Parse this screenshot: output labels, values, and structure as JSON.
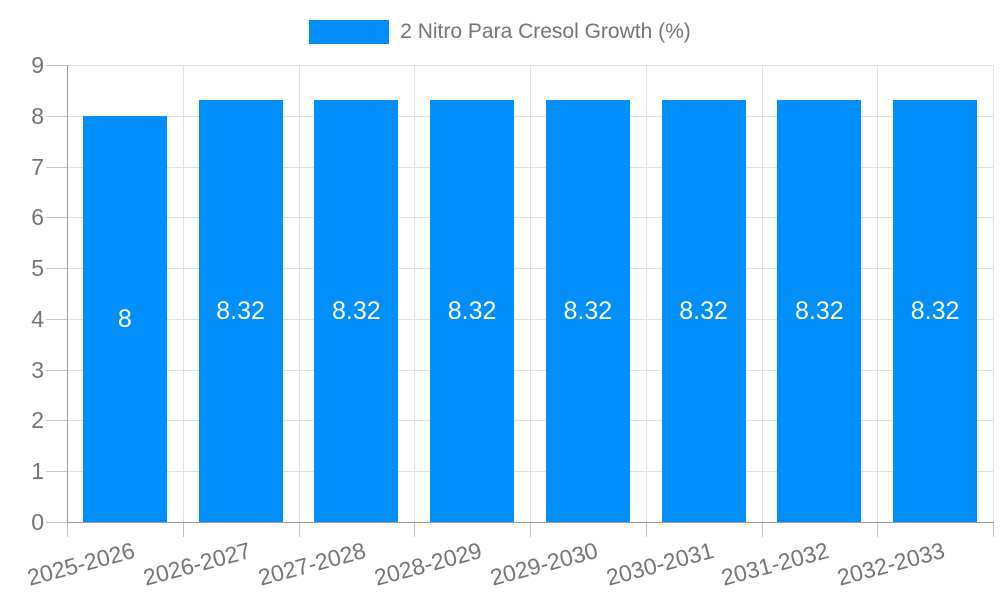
{
  "chart_data": {
    "type": "bar",
    "title": "2 Nitro Para Cresol Growth (%)",
    "categories": [
      "2025-2026",
      "2026-2027",
      "2027-2028",
      "2028-2029",
      "2029-2030",
      "2030-2031",
      "2031-2032",
      "2032-2033"
    ],
    "values": [
      8,
      8.32,
      8.32,
      8.32,
      8.32,
      8.32,
      8.32,
      8.32
    ],
    "value_labels": [
      "8",
      "8.32",
      "8.32",
      "8.32",
      "8.32",
      "8.32",
      "8.32",
      "8.32"
    ],
    "xlabel": "",
    "ylabel": "",
    "ylim": [
      0,
      9
    ],
    "yticks": [
      0,
      1,
      2,
      3,
      4,
      5,
      6,
      7,
      8,
      9
    ],
    "grid": "on",
    "legend_position": "top-center",
    "x_label_rotation_deg": -15,
    "colors": {
      "bar": "#008FFB",
      "value_label": "#ffffff",
      "axis_label": "#757575",
      "legend_text": "#757575",
      "gridline": "#e0e0e0",
      "axis_line": "#9b9b9b",
      "tick": "#c4c4c4",
      "background": "#ffffff"
    }
  }
}
